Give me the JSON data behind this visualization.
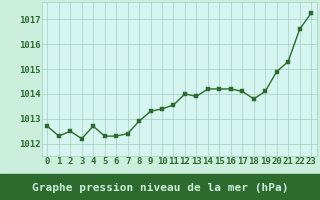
{
  "x": [
    0,
    1,
    2,
    3,
    4,
    5,
    6,
    7,
    8,
    9,
    10,
    11,
    12,
    13,
    14,
    15,
    16,
    17,
    18,
    19,
    20,
    21,
    22,
    23
  ],
  "y": [
    1012.7,
    1012.3,
    1012.5,
    1012.2,
    1012.7,
    1012.3,
    1012.3,
    1012.4,
    1012.9,
    1013.3,
    1013.4,
    1013.55,
    1014.0,
    1013.9,
    1014.2,
    1014.2,
    1014.2,
    1014.1,
    1013.8,
    1014.1,
    1014.9,
    1015.3,
    1016.6,
    1017.25
  ],
  "line_color": "#2d6a2d",
  "marker_color": "#2d6a2d",
  "bg_color": "#cceedd",
  "plot_bg_color": "#d6f5f0",
  "grid_color": "#aad4c8",
  "bottom_bar_color": "#2d6a2d",
  "xlabel": "Graphe pression niveau de la mer (hPa)",
  "xlabel_color": "#cceedd",
  "ylabel_ticks": [
    1012,
    1013,
    1014,
    1015,
    1016,
    1017
  ],
  "ylim": [
    1011.5,
    1017.7
  ],
  "xlim": [
    -0.5,
    23.5
  ],
  "tick_label_color": "#2d6a2d",
  "tick_fontsize": 6.5,
  "xlabel_fontsize": 8,
  "marker_size": 2.5,
  "line_width": 1.0
}
